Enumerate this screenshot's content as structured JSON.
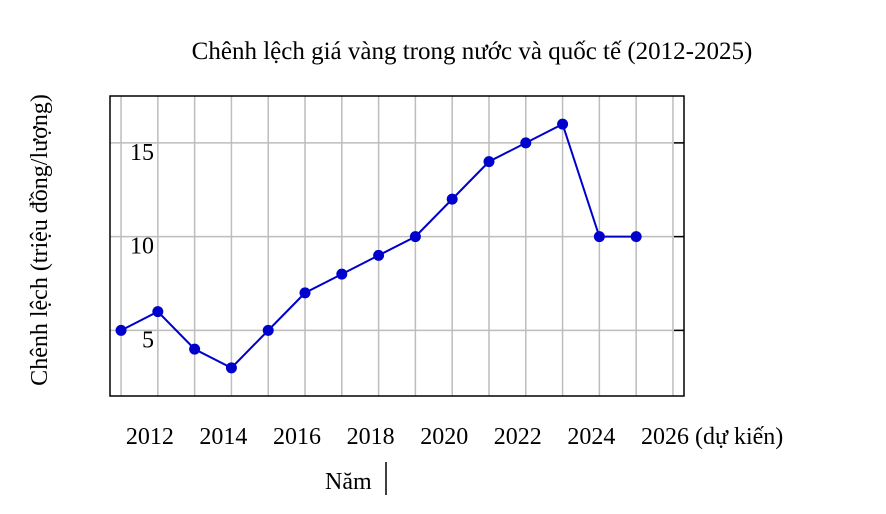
{
  "chart_data": {
    "type": "line",
    "title": "Chênh lệch giá vàng trong nước và quốc tế (2012-2025)",
    "xlabel": "Năm",
    "ylabel": "Chênh lệch (triệu đồng/lượng)",
    "x_tick_labels": [
      {
        "x": 2012,
        "label": "2012"
      },
      {
        "x": 2014,
        "label": "2014"
      },
      {
        "x": 2016,
        "label": "2016"
      },
      {
        "x": 2018,
        "label": "2018"
      },
      {
        "x": 2020,
        "label": "2020"
      },
      {
        "x": 2022,
        "label": "2022"
      },
      {
        "x": 2024,
        "label": "2024"
      },
      {
        "x": 2026,
        "label": "2026 (dự kiến)"
      }
    ],
    "y_ticks": [
      5,
      10,
      15
    ],
    "xlim": [
      2010.7,
      2026.3
    ],
    "ylim": [
      1.5,
      17.5
    ],
    "x_grid": [
      2011,
      2012,
      2013,
      2014,
      2015,
      2016,
      2017,
      2018,
      2019,
      2020,
      2021,
      2022,
      2023,
      2024,
      2025,
      2026
    ],
    "y_grid": [
      5,
      10,
      15
    ],
    "grid": true,
    "series": [
      {
        "color": "#0000cc",
        "x": [
          2011,
          2012,
          2013,
          2014,
          2015,
          2016,
          2017,
          2018,
          2019,
          2020,
          2021,
          2022,
          2023,
          2024,
          2025
        ],
        "y": [
          5,
          6,
          4,
          3,
          5,
          7,
          8,
          9,
          10,
          12,
          14,
          15,
          16,
          10,
          10
        ]
      }
    ]
  }
}
